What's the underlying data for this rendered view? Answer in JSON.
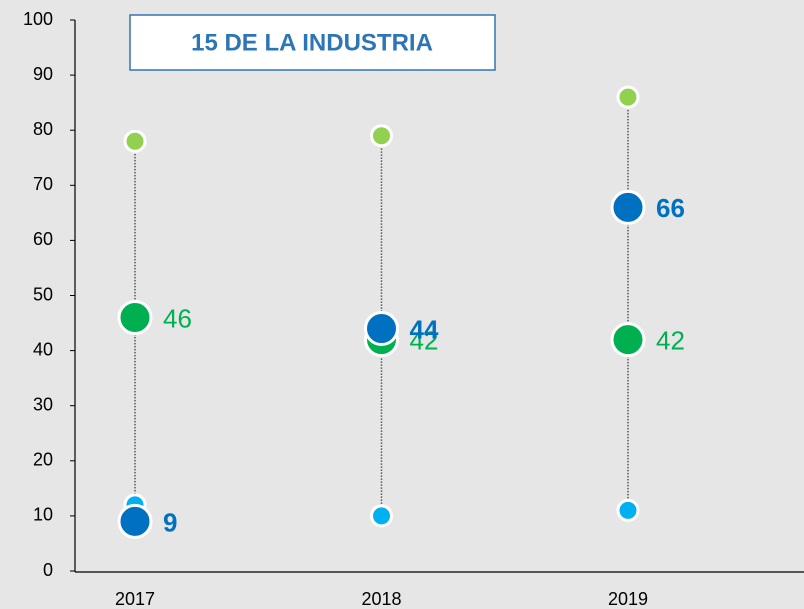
{
  "chart_data": {
    "type": "dot",
    "title": "15 DE LA INDUSTRIA",
    "categories": [
      "2017",
      "2018",
      "2019"
    ],
    "series": [
      {
        "color": "#00b0f0",
        "values": [
          12,
          10,
          11
        ],
        "size": "small",
        "show_labels": false
      },
      {
        "color": "#92d050",
        "values": [
          78,
          79,
          86
        ],
        "size": "small",
        "show_labels": false
      },
      {
        "color": "#00b050",
        "values": [
          46,
          42,
          42
        ],
        "size": "large",
        "show_labels": true,
        "label_weight": "normal"
      },
      {
        "color": "#0070c0",
        "values": [
          9,
          44,
          66
        ],
        "size": "large",
        "show_labels": true,
        "label_weight": "bold"
      }
    ],
    "ylim": [
      0,
      100
    ],
    "yticks": [
      0,
      10,
      20,
      30,
      40,
      50,
      60,
      70,
      80,
      90,
      100
    ],
    "range_line": true
  }
}
